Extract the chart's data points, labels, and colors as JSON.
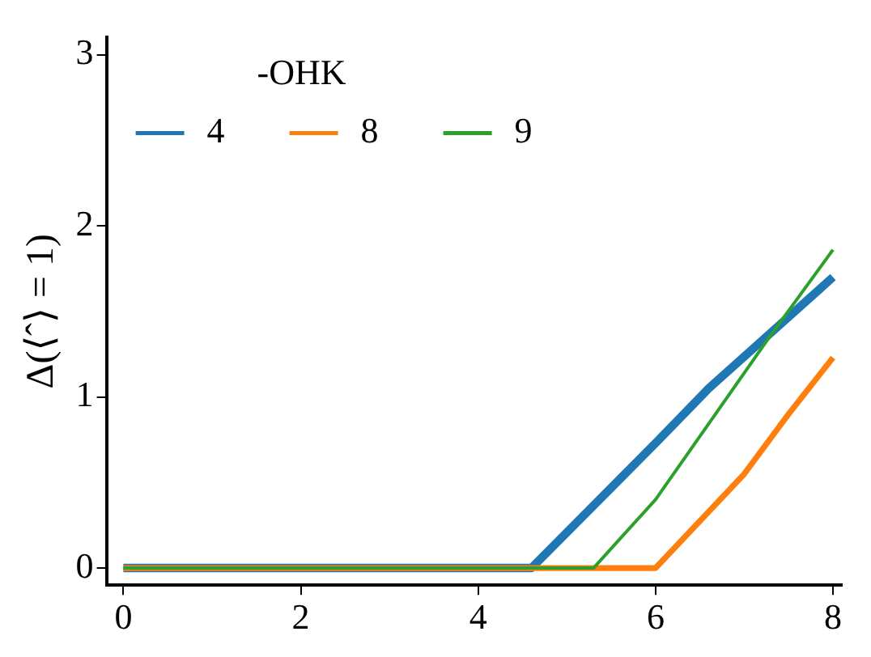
{
  "chart_data": {
    "type": "line",
    "ylabel": "Δ(⟨ˆ⟩ = 1)",
    "legend_title": "-OHK",
    "legend": "top left",
    "grid": false,
    "marker": "none",
    "line_style": "solid",
    "xlim": [
      -0.19,
      8.1
    ],
    "xticks": [
      0,
      2,
      4,
      6,
      8
    ],
    "ylim": [
      -0.1,
      3.1
    ],
    "yticks": [
      0,
      1,
      2,
      3
    ],
    "series": [
      {
        "name": "4",
        "color": "#1f77b4",
        "x": [
          0,
          4.6,
          6,
          6.6,
          8
        ],
        "values": [
          0,
          0,
          0.73,
          1.05,
          1.7
        ]
      },
      {
        "name": "8",
        "color": "#ff7f0e",
        "x": [
          0,
          6,
          7,
          7.5,
          8
        ],
        "values": [
          0,
          0,
          0.55,
          0.9,
          1.23
        ]
      },
      {
        "name": "9",
        "color": "#2ca02c",
        "x": [
          0,
          5.3,
          6,
          7.27,
          8
        ],
        "values": [
          0,
          0,
          0.4,
          1.34,
          1.86
        ]
      }
    ]
  }
}
